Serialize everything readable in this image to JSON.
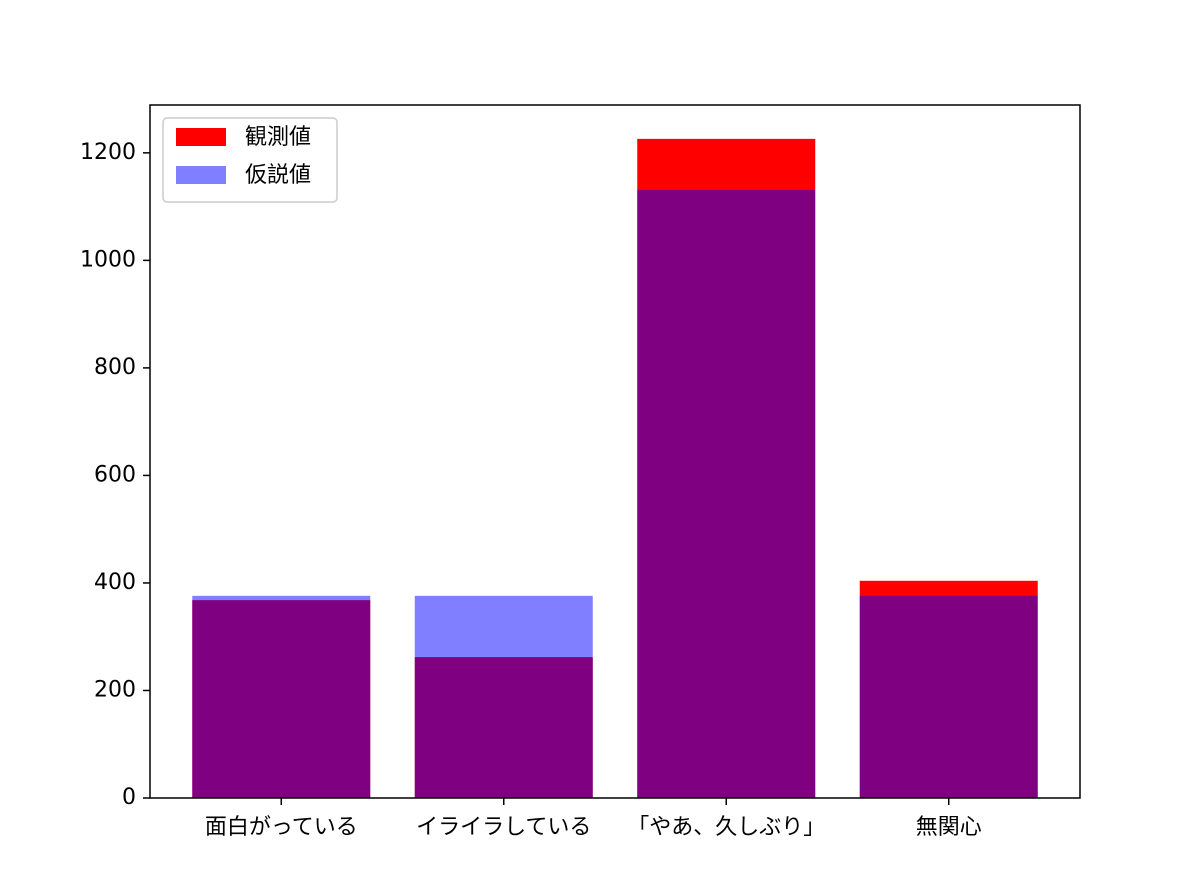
{
  "chart_data": {
    "type": "bar",
    "categories": [
      "面白がっている",
      "イライラしている",
      "「やあ、久しぶり」",
      "無関心"
    ],
    "series": [
      {
        "name": "観測値",
        "color": "#ff0000",
        "alpha": 1,
        "values": [
          368,
          262,
          1226,
          404
        ]
      },
      {
        "name": "仮説値",
        "color": "#0000ff",
        "alpha": 0.5,
        "values": [
          376,
          376,
          1131,
          376
        ]
      }
    ],
    "ylim": [
      0,
      1289
    ],
    "yticks": [
      0,
      200,
      400,
      600,
      800,
      1000,
      1200
    ],
    "legend": "upper left"
  }
}
